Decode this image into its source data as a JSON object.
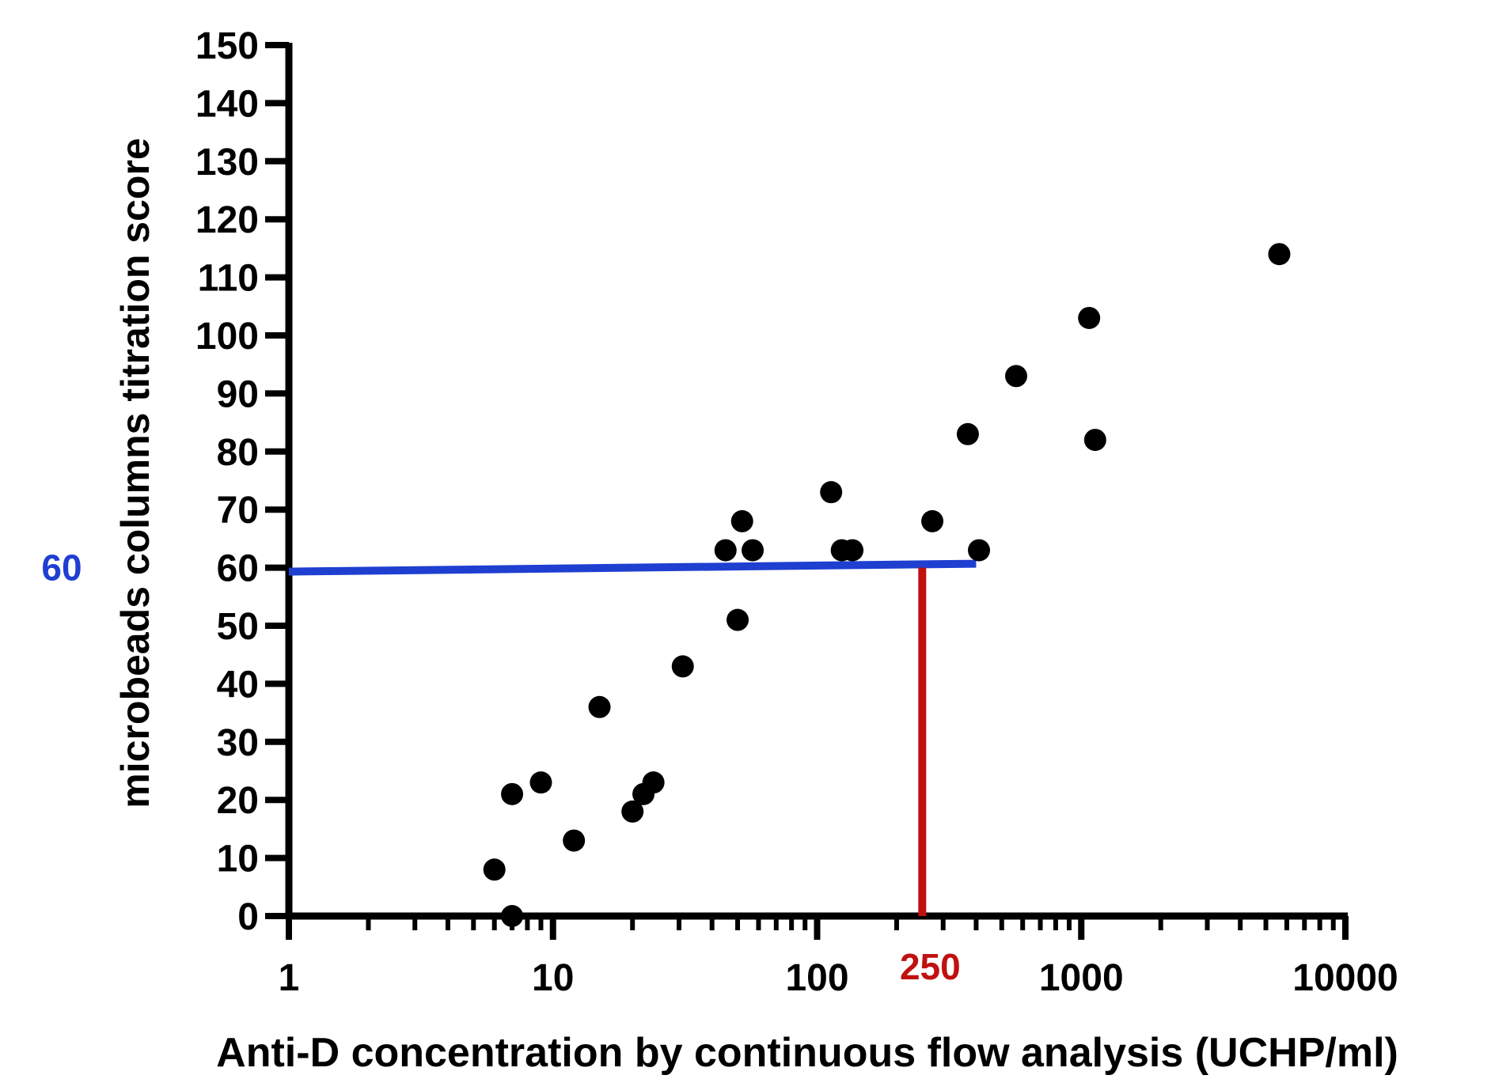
{
  "chart_data": {
    "type": "scatter",
    "title": "",
    "xlabel": "Anti-D concentration by continuous flow analysis (UCHP/ml)",
    "ylabel": "microbeads columns titration score",
    "x_scale": "log",
    "xlim": [
      1,
      10000
    ],
    "ylim": [
      0,
      150
    ],
    "x_ticks": [
      1,
      10,
      100,
      1000,
      10000
    ],
    "x_tick_labels": [
      "1",
      "10",
      "100",
      "1000",
      "10000"
    ],
    "y_ticks": [
      0,
      10,
      20,
      30,
      40,
      50,
      60,
      70,
      80,
      90,
      100,
      110,
      120,
      130,
      140,
      150
    ],
    "y_tick_labels": [
      "0",
      "10",
      "20",
      "30",
      "40",
      "50",
      "60",
      "70",
      "80",
      "90",
      "100",
      "110",
      "120",
      "130",
      "140",
      "150"
    ],
    "grid": false,
    "points": [
      {
        "x": 6,
        "y": 8
      },
      {
        "x": 7,
        "y": 0
      },
      {
        "x": 7,
        "y": 21
      },
      {
        "x": 9,
        "y": 23
      },
      {
        "x": 12,
        "y": 13
      },
      {
        "x": 15,
        "y": 36
      },
      {
        "x": 20,
        "y": 18
      },
      {
        "x": 22,
        "y": 21
      },
      {
        "x": 24,
        "y": 23
      },
      {
        "x": 31,
        "y": 43
      },
      {
        "x": 45,
        "y": 63
      },
      {
        "x": 50,
        "y": 51
      },
      {
        "x": 52,
        "y": 68
      },
      {
        "x": 57,
        "y": 63
      },
      {
        "x": 113,
        "y": 73
      },
      {
        "x": 124,
        "y": 63
      },
      {
        "x": 136,
        "y": 63
      },
      {
        "x": 273,
        "y": 68
      },
      {
        "x": 372,
        "y": 83
      },
      {
        "x": 410,
        "y": 63
      },
      {
        "x": 567,
        "y": 93
      },
      {
        "x": 1071,
        "y": 103
      },
      {
        "x": 1129,
        "y": 82
      },
      {
        "x": 5620,
        "y": 114
      }
    ],
    "reference_lines": [
      {
        "orientation": "horizontal",
        "value": 60,
        "label": "60",
        "color": "#1f3fd1",
        "x_from": 1,
        "x_to": 400
      },
      {
        "orientation": "vertical",
        "value": 250,
        "label": "250",
        "color": "#c01010",
        "y_from": 0,
        "y_to": 60
      }
    ],
    "colors": {
      "points": "#000000",
      "axes": "#000000"
    }
  }
}
